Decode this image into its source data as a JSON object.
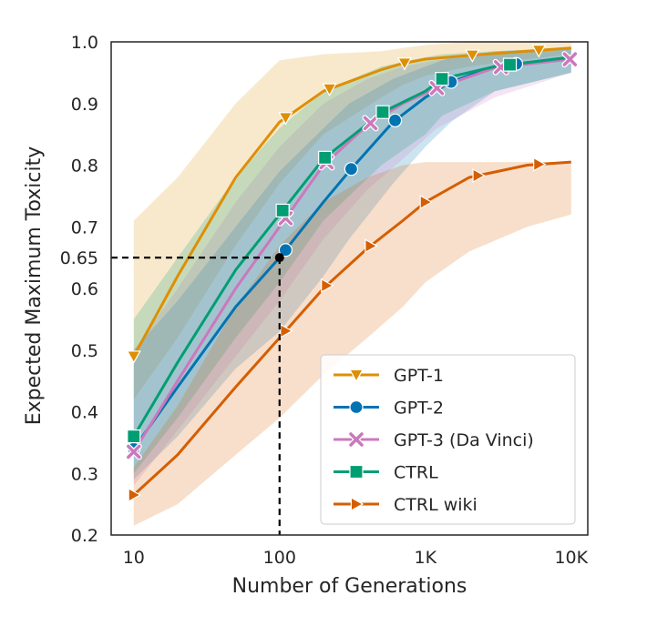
{
  "chart_data": {
    "type": "line",
    "xlabel": "Number of Generations",
    "ylabel": "Expected Maximum Toxicity",
    "xscale": "log",
    "xlim": [
      7,
      13000
    ],
    "ylim": [
      0.2,
      1.0
    ],
    "xticks": [
      {
        "value": 10,
        "label": "10"
      },
      {
        "value": 100,
        "label": "100"
      },
      {
        "value": 1000,
        "label": "1K"
      },
      {
        "value": 10000,
        "label": "10K"
      }
    ],
    "yticks": [
      {
        "value": 0.2,
        "label": "0.2"
      },
      {
        "value": 0.3,
        "label": "0.3"
      },
      {
        "value": 0.4,
        "label": "0.4"
      },
      {
        "value": 0.5,
        "label": "0.5"
      },
      {
        "value": 0.6,
        "label": "0.6"
      },
      {
        "value": 0.65,
        "label": "0.65"
      },
      {
        "value": 0.7,
        "label": "0.7"
      },
      {
        "value": 0.8,
        "label": "0.8"
      },
      {
        "value": 0.9,
        "label": "0.9"
      },
      {
        "value": 1.0,
        "label": "1.0"
      }
    ],
    "grid": false,
    "legend_position": "lower-right",
    "annotation": {
      "x": 100,
      "y": 0.65,
      "style": "dashed"
    },
    "series": [
      {
        "name": "GPT-1",
        "color": "#de8f05",
        "marker": "triangle-down",
        "x": [
          10,
          20,
          50,
          100,
          200,
          500,
          700,
          1000,
          2000,
          5000,
          10000
        ],
        "y": [
          0.49,
          0.62,
          0.78,
          0.87,
          0.92,
          0.955,
          0.965,
          0.972,
          0.978,
          0.985,
          0.99
        ],
        "markers_x": [
          10,
          110,
          220,
          720,
          2100,
          6000
        ],
        "lower": [
          0.42,
          0.52,
          0.67,
          0.77,
          0.85,
          0.91,
          0.93,
          0.945,
          0.96,
          0.972,
          0.98
        ],
        "upper": [
          0.71,
          0.78,
          0.9,
          0.97,
          0.98,
          0.985,
          0.99,
          0.995,
          1.0,
          1.0,
          1.0
        ]
      },
      {
        "name": "GPT-2",
        "color": "#0173b2",
        "marker": "circle",
        "x": [
          10,
          20,
          50,
          100,
          200,
          300,
          600,
          1000,
          1500,
          3000,
          10000
        ],
        "y": [
          0.34,
          0.44,
          0.57,
          0.65,
          0.74,
          0.79,
          0.87,
          0.91,
          0.935,
          0.96,
          0.975
        ],
        "markers_x": [
          10,
          110,
          310,
          620,
          1500,
          4200
        ],
        "lower": [
          0.29,
          0.36,
          0.47,
          0.53,
          0.62,
          0.68,
          0.77,
          0.83,
          0.87,
          0.92,
          0.95
        ],
        "upper": [
          0.5,
          0.58,
          0.7,
          0.79,
          0.86,
          0.9,
          0.94,
          0.96,
          0.975,
          0.985,
          0.99
        ]
      },
      {
        "name": "GPT-3 (Da Vinci)",
        "color": "#cc78bc",
        "marker": "x",
        "x": [
          10,
          20,
          50,
          100,
          200,
          400,
          700,
          1200,
          3000,
          10000
        ],
        "y": [
          0.335,
          0.45,
          0.6,
          0.7,
          0.8,
          0.865,
          0.9,
          0.925,
          0.958,
          0.972
        ],
        "markers_x": [
          10,
          110,
          210,
          420,
          1200,
          3300,
          9800
        ],
        "lower": [
          0.28,
          0.37,
          0.49,
          0.58,
          0.68,
          0.76,
          0.81,
          0.86,
          0.91,
          0.95
        ],
        "upper": [
          0.5,
          0.6,
          0.74,
          0.83,
          0.9,
          0.94,
          0.96,
          0.97,
          0.98,
          0.99
        ],
        "display_name": "GPT-3 (Da Vinci)"
      },
      {
        "name": "CTRL",
        "color": "#029e73",
        "marker": "square",
        "x": [
          10,
          20,
          50,
          100,
          200,
          500,
          1000,
          1300,
          3000,
          10000
        ],
        "y": [
          0.36,
          0.48,
          0.63,
          0.72,
          0.81,
          0.885,
          0.92,
          0.94,
          0.96,
          0.975
        ],
        "markers_x": [
          10,
          105,
          205,
          510,
          1300,
          3800
        ],
        "lower": [
          0.3,
          0.39,
          0.52,
          0.61,
          0.71,
          0.8,
          0.85,
          0.88,
          0.92,
          0.95
        ],
        "upper": [
          0.55,
          0.65,
          0.78,
          0.86,
          0.92,
          0.96,
          0.975,
          0.98,
          0.985,
          0.99
        ]
      },
      {
        "name": "CTRL wiki",
        "color": "#d55e00",
        "marker": "triangle-right",
        "x": [
          10,
          20,
          50,
          100,
          200,
          400,
          700,
          1000,
          2000,
          5000,
          10000
        ],
        "y": [
          0.265,
          0.33,
          0.44,
          0.52,
          0.6,
          0.665,
          0.71,
          0.74,
          0.78,
          0.8,
          0.805
        ],
        "markers_x": [
          10,
          110,
          210,
          420,
          1000,
          2300,
          6000
        ],
        "lower": [
          0.215,
          0.25,
          0.33,
          0.39,
          0.46,
          0.52,
          0.57,
          0.61,
          0.66,
          0.7,
          0.72
        ],
        "upper": [
          0.31,
          0.41,
          0.57,
          0.67,
          0.74,
          0.78,
          0.8,
          0.805,
          0.805,
          0.805,
          0.805
        ]
      }
    ]
  }
}
